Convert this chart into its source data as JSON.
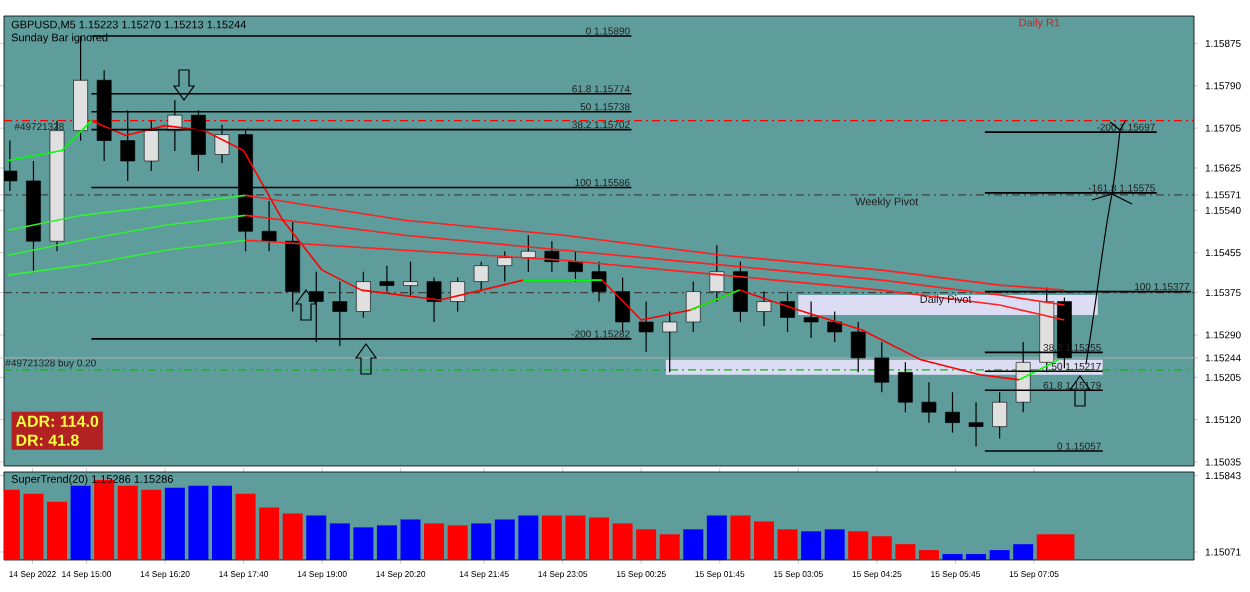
{
  "chart_data": [
    {
      "type": "candlestick",
      "title": "GBPUSD,M5  1.15223 1.15270 1.15213 1.15244",
      "subtitle": "Sunday Bar ignored",
      "x": [
        "2022-09-14T13:42",
        "2022-09-14T14:06",
        "2022-09-14T14:30",
        "2022-09-14T14:54",
        "2022-09-14T15:18",
        "2022-09-14T15:42",
        "2022-09-14T16:06",
        "2022-09-14T16:30",
        "2022-09-14T16:54",
        "2022-09-14T17:18",
        "2022-09-14T17:42",
        "2022-09-14T18:06",
        "2022-09-14T18:30",
        "2022-09-14T18:54",
        "2022-09-14T19:18",
        "2022-09-14T19:42",
        "2022-09-14T20:06",
        "2022-09-14T20:30",
        "2022-09-14T20:54",
        "2022-09-14T21:18",
        "2022-09-14T21:42",
        "2022-09-14T22:06",
        "2022-09-14T22:30",
        "2022-09-14T22:54",
        "2022-09-14T23:18",
        "2022-09-14T23:42",
        "2022-09-15T00:06",
        "2022-09-15T00:30",
        "2022-09-15T00:54",
        "2022-09-15T01:18",
        "2022-09-15T01:42",
        "2022-09-15T02:06",
        "2022-09-15T02:30",
        "2022-09-15T02:54",
        "2022-09-15T03:18",
        "2022-09-15T03:42",
        "2022-09-15T04:06",
        "2022-09-15T04:30",
        "2022-09-15T04:54",
        "2022-09-15T05:18",
        "2022-09-15T05:42",
        "2022-09-15T06:06",
        "2022-09-15T06:30",
        "2022-09-15T06:54",
        "2022-09-15T07:18",
        "2022-09-15T07:36"
      ],
      "ohlc": [
        [
          1.15619,
          1.1568,
          1.15579,
          1.15599
        ],
        [
          1.15599,
          1.15639,
          1.15417,
          1.15478
        ],
        [
          1.15478,
          1.1572,
          1.15458,
          1.157
        ],
        [
          1.157,
          1.1589,
          1.1568,
          1.15801
        ],
        [
          1.15801,
          1.15821,
          1.15639,
          1.1568
        ],
        [
          1.1568,
          1.15741,
          1.15599,
          1.15639
        ],
        [
          1.15639,
          1.1572,
          1.15619,
          1.157
        ],
        [
          1.157,
          1.15761,
          1.15659,
          1.15731
        ],
        [
          1.15731,
          1.15741,
          1.15619,
          1.15652
        ],
        [
          1.15652,
          1.15712,
          1.15635,
          1.15692
        ],
        [
          1.15692,
          1.157,
          1.15458,
          1.15498
        ],
        [
          1.15498,
          1.15559,
          1.15458,
          1.15478
        ],
        [
          1.15478,
          1.15518,
          1.15337,
          1.15377
        ],
        [
          1.15377,
          1.15417,
          1.15276,
          1.15357
        ],
        [
          1.15357,
          1.15397,
          1.15268,
          1.15337
        ],
        [
          1.15337,
          1.15417,
          1.15325,
          1.15397
        ],
        [
          1.15397,
          1.15429,
          1.15377,
          1.15389
        ],
        [
          1.15389,
          1.15437,
          1.15369,
          1.15397
        ],
        [
          1.15397,
          1.15405,
          1.15316,
          1.15357
        ],
        [
          1.15357,
          1.15405,
          1.15337,
          1.15397
        ],
        [
          1.15397,
          1.15437,
          1.15377,
          1.15429
        ],
        [
          1.15429,
          1.15458,
          1.15397,
          1.15445
        ],
        [
          1.15445,
          1.1549,
          1.15417,
          1.15458
        ],
        [
          1.15458,
          1.15478,
          1.15417,
          1.15437
        ],
        [
          1.15437,
          1.15458,
          1.15397,
          1.15417
        ],
        [
          1.15417,
          1.15437,
          1.15357,
          1.15377
        ],
        [
          1.15377,
          1.15405,
          1.15296,
          1.15316
        ],
        [
          1.15316,
          1.15357,
          1.15256,
          1.15296
        ],
        [
          1.15296,
          1.15337,
          1.15215,
          1.15316
        ],
        [
          1.15316,
          1.15397,
          1.15296,
          1.15377
        ],
        [
          1.15377,
          1.1547,
          1.15357,
          1.15417
        ],
        [
          1.15417,
          1.15437,
          1.15316,
          1.15337
        ],
        [
          1.15337,
          1.15377,
          1.15308,
          1.15357
        ],
        [
          1.15357,
          1.15377,
          1.15296,
          1.15325
        ],
        [
          1.15325,
          1.15357,
          1.15284,
          1.15316
        ],
        [
          1.15316,
          1.15337,
          1.15276,
          1.15296
        ],
        [
          1.15296,
          1.15316,
          1.15215,
          1.15244
        ],
        [
          1.15244,
          1.15276,
          1.15175,
          1.15195
        ],
        [
          1.15215,
          1.15235,
          1.15135,
          1.15155
        ],
        [
          1.15155,
          1.15195,
          1.15114,
          1.15135
        ],
        [
          1.15135,
          1.15175,
          1.15094,
          1.15114
        ],
        [
          1.15114,
          1.15155,
          1.15066,
          1.15106
        ],
        [
          1.15106,
          1.15175,
          1.15082,
          1.15155
        ],
        [
          1.15155,
          1.15276,
          1.15135,
          1.15235
        ],
        [
          1.15235,
          1.15385,
          1.15215,
          1.15357
        ],
        [
          1.15357,
          1.15365,
          1.15223,
          1.15244
        ]
      ],
      "series": [
        {
          "type": "area",
          "color": "#dcdcf5",
          "x": [
            "2022-09-15T00:50",
            "2022-09-15T08:15"
          ],
          "values": [
            null,
            null
          ],
          "upper": [
            1.1524,
            1.1524
          ],
          "lower": [
            1.1521,
            1.1521
          ]
        },
        {
          "type": "area",
          "color": "#dcdcf5",
          "x": [
            "2022-09-15T03:05",
            "2022-09-15T08:10"
          ],
          "values": [
            null,
            null
          ],
          "upper": [
            1.1537,
            1.1537
          ],
          "lower": [
            1.1533,
            1.1533
          ]
        },
        {
          "type": "line",
          "color": "#33ee33",
          "x": [
            "2022-09-14T13:40",
            "2022-09-14T14:55",
            "2022-09-14T16:20",
            "2022-09-14T17:42"
          ],
          "values": [
            1.155,
            1.1553,
            1.1555,
            1.1557
          ]
        },
        {
          "type": "line",
          "color": "#33ee33",
          "x": [
            "2022-09-14T13:40",
            "2022-09-14T14:55",
            "2022-09-14T16:20",
            "2022-09-14T17:42"
          ],
          "values": [
            1.1545,
            1.1548,
            1.1551,
            1.1553
          ]
        },
        {
          "type": "line",
          "color": "#33ee33",
          "x": [
            "2022-09-14T13:40",
            "2022-09-14T14:55",
            "2022-09-14T16:20",
            "2022-09-14T17:42"
          ],
          "values": [
            1.1541,
            1.1543,
            1.1546,
            1.1548
          ]
        },
        {
          "type": "line",
          "color": "#ff2020",
          "x": [
            "2022-09-14T17:42",
            "2022-09-14T20:24",
            "2022-09-14T23:06",
            "2022-09-15T01:48",
            "2022-09-15T04:30",
            "2022-09-15T06:30",
            "2022-09-15T07:36"
          ],
          "values": [
            1.1557,
            1.1552,
            1.1549,
            1.1545,
            1.1542,
            1.1539,
            1.1538
          ]
        },
        {
          "type": "line",
          "color": "#ff2020",
          "x": [
            "2022-09-14T17:42",
            "2022-09-14T20:24",
            "2022-09-14T23:06",
            "2022-09-15T01:48",
            "2022-09-15T04:30",
            "2022-09-15T06:30",
            "2022-09-15T07:36"
          ],
          "values": [
            1.1553,
            1.1549,
            1.1546,
            1.1543,
            1.154,
            1.1537,
            1.1535
          ]
        },
        {
          "type": "line",
          "color": "#ff2020",
          "x": [
            "2022-09-14T17:42",
            "2022-09-14T20:24",
            "2022-09-14T23:06",
            "2022-09-15T01:48",
            "2022-09-15T04:30",
            "2022-09-15T06:30",
            "2022-09-15T07:36"
          ],
          "values": [
            1.1548,
            1.1546,
            1.1544,
            1.1541,
            1.1538,
            1.1535,
            1.1532
          ]
        },
        {
          "type": "line",
          "color": "#ff0000",
          "x": [
            "2022-09-14T15:05",
            "2022-09-14T15:40",
            "2022-09-14T16:20",
            "2022-09-14T17:00",
            "2022-09-14T17:40",
            "2022-09-14T18:20",
            "2022-09-14T19:00",
            "2022-09-14T19:40",
            "2022-09-14T21:00",
            "2022-09-14T22:25",
            "2022-09-14T23:45",
            "2022-09-15T00:25",
            "2022-09-15T01:15",
            "2022-09-15T02:05",
            "2022-09-15T03:05",
            "2022-09-15T04:10",
            "2022-09-15T05:10",
            "2022-09-15T06:10",
            "2022-09-15T06:50"
          ],
          "values": [
            1.1572,
            1.1569,
            1.1571,
            1.157,
            1.1566,
            1.1552,
            1.1542,
            1.1538,
            1.1536,
            1.154,
            1.154,
            1.1532,
            1.1534,
            1.1538,
            1.1534,
            1.153,
            1.1524,
            1.1521,
            1.152
          ]
        },
        {
          "type": "line",
          "color": "#00ff00",
          "x": [
            "2022-09-14T13:40",
            "2022-09-14T14:35",
            "2022-09-14T15:05",
            "2022-09-14T15:40",
            "2022-09-14T16:20",
            "2022-09-14T17:00",
            "2022-09-14T17:40",
            "2022-09-14T18:20",
            "2022-09-14T19:00",
            "2022-09-14T19:40",
            "2022-09-14T21:00",
            "2022-09-14T22:25",
            "2022-09-14T23:45",
            "2022-09-15T00:25",
            "2022-09-15T01:15",
            "2022-09-15T02:05",
            "2022-09-15T03:05",
            "2022-09-15T04:10",
            "2022-09-15T05:10",
            "2022-09-15T06:10",
            "2022-09-15T06:50",
            "2022-09-15T07:30"
          ],
          "values": [
            1.1564,
            1.1566,
            1.1572,
            null,
            null,
            null,
            null,
            null,
            null,
            null,
            null,
            1.154,
            1.154,
            null,
            1.1534,
            1.1538,
            null,
            null,
            null,
            null,
            1.152,
            1.1524
          ]
        },
        {
          "type": "line",
          "color": "#000000",
          "name": "0  1.15890",
          "x": [
            "2022-09-14T15:05",
            "2022-09-15T00:15"
          ],
          "values": [
            1.1589,
            1.1589
          ]
        },
        {
          "type": "line",
          "color": "#000000",
          "name": "61.8  1.15774",
          "x": [
            "2022-09-14T15:05",
            "2022-09-15T00:15"
          ],
          "values": [
            1.15774,
            1.15774
          ]
        },
        {
          "type": "line",
          "color": "#000000",
          "name": "50  1.15738",
          "x": [
            "2022-09-14T15:05",
            "2022-09-15T00:15"
          ],
          "values": [
            1.15738,
            1.15738
          ]
        },
        {
          "type": "line",
          "color": "#000000",
          "name": "38.2  1.15702",
          "x": [
            "2022-09-14T15:05",
            "2022-09-15T00:15"
          ],
          "values": [
            1.15702,
            1.15702
          ]
        },
        {
          "type": "line",
          "color": "#000000",
          "name": "100  1.15586",
          "x": [
            "2022-09-14T15:05",
            "2022-09-15T00:15"
          ],
          "values": [
            1.15586,
            1.15586
          ]
        },
        {
          "type": "line",
          "color": "#000000",
          "name": "-200  1.15282",
          "x": [
            "2022-09-14T15:05",
            "2022-09-15T00:15"
          ],
          "values": [
            1.15282,
            1.15282
          ]
        },
        {
          "type": "line",
          "color": "#000000",
          "name": "-200  1.15697",
          "x": [
            "2022-09-15T06:15",
            "2022-09-15T09:10"
          ],
          "values": [
            1.15697,
            1.15697
          ]
        },
        {
          "type": "line",
          "color": "#000000",
          "name": "-161.8  1.15575",
          "x": [
            "2022-09-15T06:15",
            "2022-09-15T09:10"
          ],
          "values": [
            1.15575,
            1.15575
          ]
        },
        {
          "type": "line",
          "color": "#000000",
          "name": "100  1.15377",
          "x": [
            "2022-09-15T06:15",
            "2022-09-15T09:45"
          ],
          "values": [
            1.15377,
            1.15377
          ]
        },
        {
          "type": "line",
          "color": "#000000",
          "name": "38.2  1.15255",
          "x": [
            "2022-09-15T06:15",
            "2022-09-15T08:15"
          ],
          "values": [
            1.15255,
            1.15255
          ]
        },
        {
          "type": "line",
          "color": "#000000",
          "name": "50  1.15217",
          "x": [
            "2022-09-15T06:15",
            "2022-09-15T08:15"
          ],
          "values": [
            1.15217,
            1.15217
          ]
        },
        {
          "type": "line",
          "color": "#000000",
          "name": "61.8  1.15179",
          "x": [
            "2022-09-15T06:15",
            "2022-09-15T08:15"
          ],
          "values": [
            1.15179,
            1.15179
          ]
        },
        {
          "type": "line",
          "color": "#000000",
          "name": "0  1.15057",
          "x": [
            "2022-09-15T06:15",
            "2022-09-15T08:15"
          ],
          "values": [
            1.15057,
            1.15057
          ]
        }
      ],
      "ref_lines": [
        {
          "axis": "y",
          "value": 1.1572,
          "color": "#ff0000",
          "line_style": "dashed"
        },
        {
          "axis": "y",
          "value": 1.15571,
          "color": "#404040",
          "line_style": "dashed"
        },
        {
          "axis": "y",
          "value": 1.15375,
          "color": "#404040",
          "line_style": "dashed"
        },
        {
          "axis": "y",
          "value": 1.15244,
          "color": "#a8a8a8",
          "line_style": "solid"
        },
        {
          "axis": "y",
          "value": 1.1522,
          "label": "#49721328 buy 0.20",
          "color": "#00c000",
          "line_style": "dashed"
        }
      ],
      "annotations": [
        "ADR: 114.0",
        "DR: 41.8",
        {
          "text": "#49721328",
          "x": "2022-09-14T14:12",
          "y": 1.1572
        },
        {
          "text": "Weekly Pivot",
          "x": "2022-09-15T04:35",
          "y": 1.15571
        },
        {
          "text": "Daily Pivot",
          "x": "2022-09-15T05:35",
          "y": 1.15375
        },
        "Daily R1"
      ],
      "xlim": [
        "2022-09-14T13:36",
        "2022-09-15T09:48"
      ],
      "ylim": [
        1.15027,
        1.1593
      ],
      "yticks": [
        1.15875,
        {
          "value": 1.1579,
          "label": "1.15790"
        },
        1.15705,
        1.15625,
        1.15571,
        {
          "value": 1.1554,
          "label": "1.15540"
        },
        1.15455,
        1.15375,
        {
          "value": 1.1529,
          "label": "1.15290"
        },
        1.15244,
        1.15205,
        {
          "value": 1.1512,
          "label": "1.15120"
        },
        1.15035
      ],
      "tick_labels": "y"
    },
    {
      "type": "bar",
      "title": "SuperTrend(20) 1.15286 1.15286",
      "x": [
        "2022-09-14T13:42",
        "2022-09-14T14:06",
        "2022-09-14T14:30",
        "2022-09-14T14:54",
        "2022-09-14T15:18",
        "2022-09-14T15:42",
        "2022-09-14T16:06",
        "2022-09-14T16:30",
        "2022-09-14T16:54",
        "2022-09-14T17:18",
        "2022-09-14T17:42",
        "2022-09-14T18:06",
        "2022-09-14T18:30",
        "2022-09-14T18:54",
        "2022-09-14T19:18",
        "2022-09-14T19:42",
        "2022-09-14T20:06",
        "2022-09-14T20:30",
        "2022-09-14T20:54",
        "2022-09-14T21:18",
        "2022-09-14T21:42",
        "2022-09-14T22:06",
        "2022-09-14T22:30",
        "2022-09-14T22:54",
        "2022-09-14T23:18",
        "2022-09-14T23:42",
        "2022-09-15T00:06",
        "2022-09-15T00:30",
        "2022-09-15T00:54",
        "2022-09-15T01:18",
        "2022-09-15T01:42",
        "2022-09-15T02:06",
        "2022-09-15T02:30",
        "2022-09-15T02:54",
        "2022-09-15T03:18",
        "2022-09-15T03:42",
        "2022-09-15T04:06",
        "2022-09-15T04:30",
        "2022-09-15T04:54",
        "2022-09-15T05:18",
        "2022-09-15T05:42",
        "2022-09-15T06:06",
        "2022-09-15T06:30",
        "2022-09-15T06:54",
        "2022-09-15T07:18",
        "2022-09-15T07:36"
      ],
      "values": [
        1.157,
        1.1566,
        1.1558,
        1.1574,
        1.158,
        1.1574,
        1.157,
        1.1572,
        1.1574,
        1.1574,
        1.1566,
        1.1552,
        1.1546,
        1.1544,
        1.1536,
        1.1532,
        1.1534,
        1.154,
        1.1536,
        1.1534,
        1.1536,
        1.154,
        1.1544,
        1.1544,
        1.1544,
        1.1542,
        1.1536,
        1.153,
        1.1525,
        1.153,
        1.1544,
        1.1544,
        1.1538,
        1.153,
        1.1528,
        1.153,
        1.1528,
        1.1523,
        1.1515,
        1.1509,
        1.1505,
        1.1505,
        1.1509,
        1.1515,
        1.1525,
        1.1525
      ],
      "colors": [
        "#ff0000",
        "#ff0000",
        "#ff0000",
        "#0000ff",
        "#ff0000",
        "#ff0000",
        "#ff0000",
        "#0000ff",
        "#0000ff",
        "#0000ff",
        "#ff0000",
        "#ff0000",
        "#ff0000",
        "#0000ff",
        "#0000ff",
        "#0000ff",
        "#0000ff",
        "#0000ff",
        "#ff0000",
        "#ff0000",
        "#0000ff",
        "#0000ff",
        "#0000ff",
        "#ff0000",
        "#ff0000",
        "#ff0000",
        "#ff0000",
        "#ff0000",
        "#ff0000",
        "#0000ff",
        "#0000ff",
        "#ff0000",
        "#ff0000",
        "#ff0000",
        "#0000ff",
        "#0000ff",
        "#ff0000",
        "#ff0000",
        "#ff0000",
        "#ff0000",
        "#0000ff",
        "#0000ff",
        "#0000ff",
        "#0000ff",
        "#ff0000",
        "#ff0000"
      ],
      "xlim": [
        "2022-09-14T13:36",
        "2022-09-15T09:48"
      ],
      "ylim": [
        1.1499,
        1.1588
      ],
      "yticks": [
        1.15843,
        1.15071
      ],
      "xticks": [
        {
          "value": "2022-09-14T14:05",
          "label": "14 Sep 2022"
        },
        {
          "value": "2022-09-14T15:00",
          "label": "14 Sep 15:00"
        },
        {
          "value": "2022-09-14T16:20",
          "label": "14 Sep 16:20"
        },
        {
          "value": "2022-09-14T17:40",
          "label": "14 Sep 17:40"
        },
        {
          "value": "2022-09-14T19:00",
          "label": "14 Sep 19:00"
        },
        {
          "value": "2022-09-14T20:20",
          "label": "14 Sep 20:20"
        },
        {
          "value": "2022-09-14T21:45",
          "label": "14 Sep 21:45"
        },
        {
          "value": "2022-09-14T23:05",
          "label": "14 Sep 23:05"
        },
        {
          "value": "2022-09-15T00:25",
          "label": "15 Sep 00:25"
        },
        {
          "value": "2022-09-15T01:45",
          "label": "15 Sep 01:45"
        },
        {
          "value": "2022-09-15T03:05",
          "label": "15 Sep 03:05"
        },
        {
          "value": "2022-09-15T04:25",
          "label": "15 Sep 04:25"
        },
        {
          "value": "2022-09-15T05:45",
          "label": "15 Sep 05:45"
        },
        {
          "value": "2022-09-15T07:05",
          "label": "15 Sep 07:05"
        }
      ]
    }
  ]
}
